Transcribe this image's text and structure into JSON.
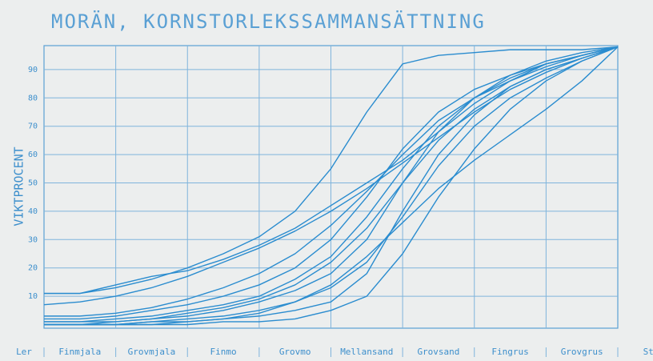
{
  "chart_data": {
    "type": "line",
    "title": "MORÄN, KORNSTORLEKSSAMMANSÄTTNING",
    "y_label": "VIKTPROCENT",
    "categories": [
      "Ler",
      "Finmjala",
      "Grovmjala",
      "Finmo",
      "Grovmo",
      "Mellansand",
      "Grovsand",
      "Fingrus",
      "Grovgrus",
      "Sten"
    ],
    "x": [
      0,
      0.5,
      1,
      1.5,
      2,
      2.5,
      3,
      3.5,
      4,
      4.5,
      5,
      5.5,
      6,
      6.5,
      7,
      7.5,
      8
    ],
    "xlim": [
      0,
      8
    ],
    "ylim": [
      0,
      100
    ],
    "yticks": [
      10,
      20,
      30,
      40,
      50,
      60,
      70,
      80,
      90
    ],
    "grid": true,
    "color": "#2a8ccf",
    "series": [
      {
        "values": [
          11,
          11,
          13,
          16,
          20,
          25,
          31,
          40,
          55,
          75,
          92,
          95,
          96,
          97,
          97,
          97,
          98
        ]
      },
      {
        "values": [
          11,
          11,
          14,
          17,
          19,
          23,
          28,
          34,
          42,
          50,
          58,
          68,
          78,
          86,
          92,
          95,
          98
        ]
      },
      {
        "values": [
          7,
          8,
          10,
          13,
          17,
          22,
          27,
          33,
          40,
          48,
          57,
          66,
          75,
          83,
          89,
          94,
          98
        ]
      },
      {
        "values": [
          3,
          3,
          4,
          6,
          9,
          13,
          18,
          25,
          35,
          47,
          60,
          72,
          80,
          86,
          91,
          95,
          98
        ]
      },
      {
        "values": [
          2,
          2,
          3,
          5,
          7,
          10,
          14,
          20,
          30,
          45,
          62,
          75,
          83,
          88,
          92,
          95,
          98
        ]
      },
      {
        "values": [
          1,
          1,
          2,
          3,
          5,
          7,
          10,
          16,
          24,
          38,
          55,
          70,
          80,
          87,
          92,
          95,
          98
        ]
      },
      {
        "values": [
          1,
          1,
          1,
          2,
          4,
          6,
          9,
          14,
          22,
          34,
          50,
          65,
          76,
          84,
          90,
          94,
          98
        ]
      },
      {
        "values": [
          0,
          0,
          1,
          2,
          3,
          5,
          8,
          12,
          18,
          30,
          50,
          68,
          80,
          88,
          93,
          96,
          98
        ]
      },
      {
        "values": [
          0,
          0,
          0,
          1,
          2,
          3,
          5,
          8,
          13,
          22,
          38,
          56,
          70,
          80,
          87,
          93,
          98
        ]
      },
      {
        "values": [
          0,
          0,
          0,
          0,
          1,
          2,
          3,
          5,
          8,
          18,
          40,
          60,
          74,
          84,
          90,
          94,
          98
        ]
      },
      {
        "values": [
          0,
          0,
          0,
          0,
          0,
          1,
          1,
          2,
          5,
          10,
          25,
          45,
          62,
          76,
          86,
          93,
          98
        ]
      },
      {
        "values": [
          0,
          0,
          0,
          1,
          1,
          2,
          4,
          8,
          14,
          24,
          36,
          48,
          58,
          67,
          76,
          86,
          98
        ]
      }
    ]
  }
}
